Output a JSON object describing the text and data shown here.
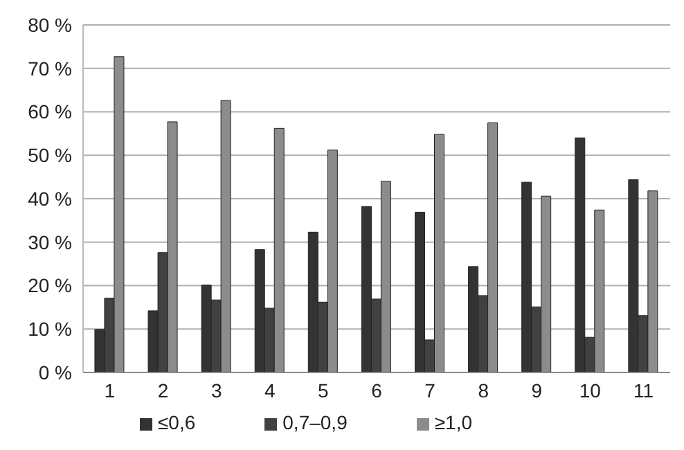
{
  "chart_data": {
    "type": "bar",
    "categories": [
      "1",
      "2",
      "3",
      "4",
      "5",
      "6",
      "7",
      "8",
      "9",
      "10",
      "11"
    ],
    "series": [
      {
        "name": "≤0,6",
        "color": "#333333",
        "values": [
          9.9,
          14.2,
          20.1,
          28.3,
          32.3,
          38.2,
          36.9,
          24.4,
          43.8,
          54.0,
          44.4
        ]
      },
      {
        "name": "0,7–0,9",
        "color": "#414141",
        "values": [
          17.1,
          27.6,
          16.7,
          14.8,
          16.2,
          16.9,
          7.5,
          17.7,
          15.1,
          8.1,
          13.1
        ]
      },
      {
        "name": "≥1,0",
        "color": "#8c8c8c",
        "values": [
          72.7,
          57.7,
          62.6,
          56.2,
          51.2,
          44.0,
          54.8,
          57.5,
          40.6,
          37.4,
          41.8
        ]
      }
    ],
    "ylim": [
      0,
      80
    ],
    "yticks": [
      {
        "value": 0,
        "label": "0 %"
      },
      {
        "value": 10,
        "label": "10 %"
      },
      {
        "value": 20,
        "label": "20 %"
      },
      {
        "value": 30,
        "label": "30 %"
      },
      {
        "value": 40,
        "label": "40 %"
      },
      {
        "value": 50,
        "label": "50 %"
      },
      {
        "value": 60,
        "label": "60 %"
      },
      {
        "value": 70,
        "label": "70 %"
      },
      {
        "value": 80,
        "label": "80 %"
      }
    ],
    "grid": "y",
    "legend": "bottom"
  }
}
